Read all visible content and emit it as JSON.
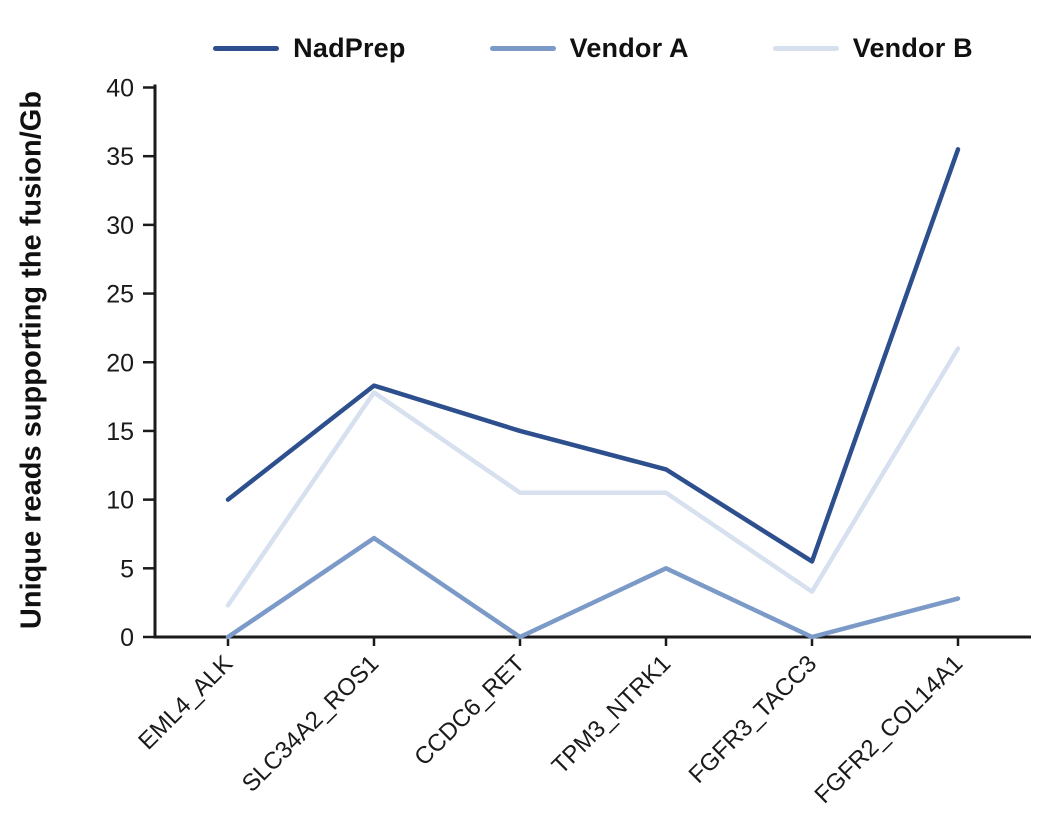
{
  "chart_data": {
    "type": "line",
    "title": "",
    "ylabel": "Unique reads supporting the fusion/Gb",
    "xlabel": "",
    "ylim": [
      0,
      40
    ],
    "yticks": [
      0,
      5,
      10,
      15,
      20,
      25,
      30,
      35,
      40
    ],
    "grid": false,
    "legend_position": "top-center",
    "categories": [
      "EML4_ALK",
      "SLC34A2_ROS1",
      "CCDC6_RET",
      "TPM3_NTRK1",
      "FGFR3_TACC3",
      "FGFR2_COL14A1"
    ],
    "series": [
      {
        "name": "NadPrep",
        "color": "#2d4f8e",
        "values": [
          10,
          18.3,
          15,
          12.2,
          5.5,
          35.5
        ]
      },
      {
        "name": "Vendor A",
        "color": "#7b9ac8",
        "values": [
          0,
          7.2,
          0,
          5,
          0,
          2.8
        ]
      },
      {
        "name": "Vendor B",
        "color": "#d7e0ef",
        "values": [
          2.3,
          17.8,
          10.5,
          10.5,
          3.3,
          21
        ]
      }
    ],
    "axis_color": "#1a1a1a",
    "text_color": "#1a1a1a",
    "background": "#ffffff"
  }
}
